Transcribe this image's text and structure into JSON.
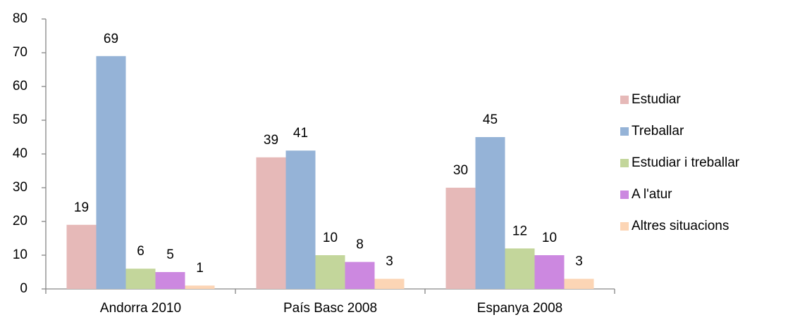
{
  "chart_data": {
    "type": "bar",
    "categories": [
      "Andorra 2010",
      "País Basc 2008",
      "Espanya 2008"
    ],
    "series": [
      {
        "name": "Estudiar",
        "color": "#e6b9b8",
        "values": [
          19,
          39,
          30
        ]
      },
      {
        "name": "Treballar",
        "color": "#95b3d7",
        "values": [
          69,
          41,
          45
        ]
      },
      {
        "name": "Estudiar i treballar",
        "color": "#c3d69b",
        "values": [
          6,
          10,
          12
        ]
      },
      {
        "name": "A l'atur",
        "color": "#cc88e0",
        "values": [
          5,
          8,
          10
        ]
      },
      {
        "name": "Altres situacions",
        "color": "#fcd5b5",
        "values": [
          1,
          3,
          3
        ]
      }
    ],
    "ylim": [
      0,
      80
    ],
    "yticks": [
      0,
      10,
      20,
      30,
      40,
      50,
      60,
      70,
      80
    ],
    "grid": false,
    "legend": "right"
  }
}
